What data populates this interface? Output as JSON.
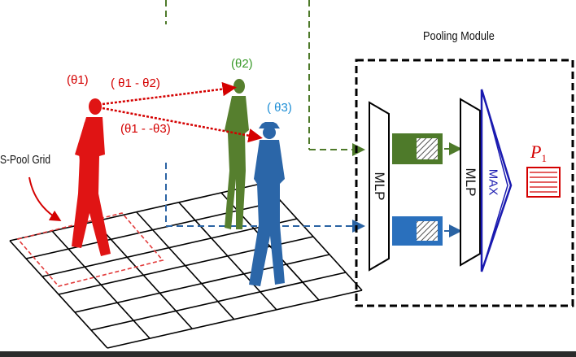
{
  "module_title": "Pooling Module",
  "grid_label": "S-Pool Grid",
  "people": [
    {
      "label": "(θ1)",
      "color": "#d40000"
    },
    {
      "label": "(θ2)",
      "color": "#3a9a2a"
    },
    {
      "label": "( θ3)",
      "color": "#1f8fd6"
    }
  ],
  "relative_labels": [
    "( θ1 - θ2)",
    "(θ1 - -θ3)"
  ],
  "blocks": {
    "mlp1": "MLP",
    "mlp2": "MLP",
    "max": "MAX"
  },
  "output": {
    "symbol": "P",
    "subscript": "1"
  },
  "colors": {
    "red": "#d40000",
    "green": "#4e7a2a",
    "green_bright": "#3a9a2a",
    "blue": "#2a63a3",
    "blue_bright": "#1f8fd6",
    "max_blue": "#1a1ab0"
  }
}
